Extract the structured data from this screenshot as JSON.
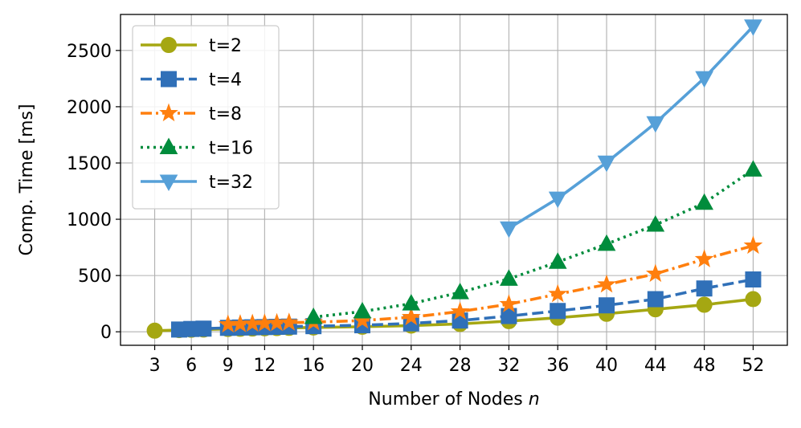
{
  "chart_data": {
    "type": "line",
    "xlabel": "Number of Nodes ",
    "xlabel_var": "n",
    "ylabel": "Comp. Time [ms]",
    "x_ticks": [
      "3",
      "6",
      "9",
      "12",
      "16",
      "20",
      "24",
      "28",
      "32",
      "36",
      "40",
      "44",
      "48",
      "52"
    ],
    "y_ticks": [
      "0",
      "500",
      "1000",
      "1500",
      "2000",
      "2500"
    ],
    "xlim": [
      0.2,
      54.8
    ],
    "ylim": [
      -120,
      2820
    ],
    "grid": true,
    "legend_position": "top-left",
    "series": [
      {
        "name": "t=2",
        "color": "#a5a712",
        "line": "solid",
        "marker": "circle",
        "x": [
          3,
          5,
          6,
          7,
          9,
          10,
          11,
          12,
          13,
          14,
          16,
          20,
          24,
          28,
          32,
          36,
          40,
          44,
          48,
          52
        ],
        "values": [
          10,
          15,
          18,
          20,
          25,
          27,
          29,
          31,
          33,
          35,
          38,
          45,
          55,
          70,
          95,
          125,
          160,
          200,
          240,
          290
        ]
      },
      {
        "name": "t=4",
        "color": "#3070b8",
        "line": "dashed",
        "marker": "square",
        "x": [
          5,
          6,
          7,
          9,
          10,
          11,
          12,
          13,
          14,
          16,
          20,
          24,
          28,
          32,
          36,
          40,
          44,
          48,
          52
        ],
        "values": [
          20,
          25,
          28,
          35,
          38,
          40,
          42,
          44,
          46,
          50,
          58,
          75,
          100,
          140,
          185,
          235,
          290,
          385,
          465
        ]
      },
      {
        "name": "t=8",
        "color": "#ff7f0e",
        "line": "dashdot",
        "marker": "star",
        "x": [
          9,
          10,
          11,
          12,
          13,
          14,
          16,
          20,
          24,
          28,
          32,
          36,
          40,
          44,
          48,
          52
        ],
        "values": [
          65,
          68,
          72,
          75,
          78,
          82,
          85,
          100,
          130,
          180,
          245,
          335,
          420,
          515,
          645,
          765
        ]
      },
      {
        "name": "t=16",
        "color": "#008c3c",
        "line": "dotted",
        "marker": "triangle-up",
        "x": [
          16,
          20,
          24,
          28,
          32,
          36,
          40,
          44,
          48,
          52
        ],
        "values": [
          130,
          180,
          250,
          350,
          470,
          620,
          780,
          950,
          1145,
          1440
        ]
      },
      {
        "name": "t=32",
        "color": "#56a0d8",
        "line": "solid",
        "marker": "triangle-down",
        "x": [
          32,
          36,
          40,
          44,
          48,
          52
        ],
        "values": [
          920,
          1185,
          1505,
          1855,
          2255,
          2715
        ]
      }
    ]
  }
}
